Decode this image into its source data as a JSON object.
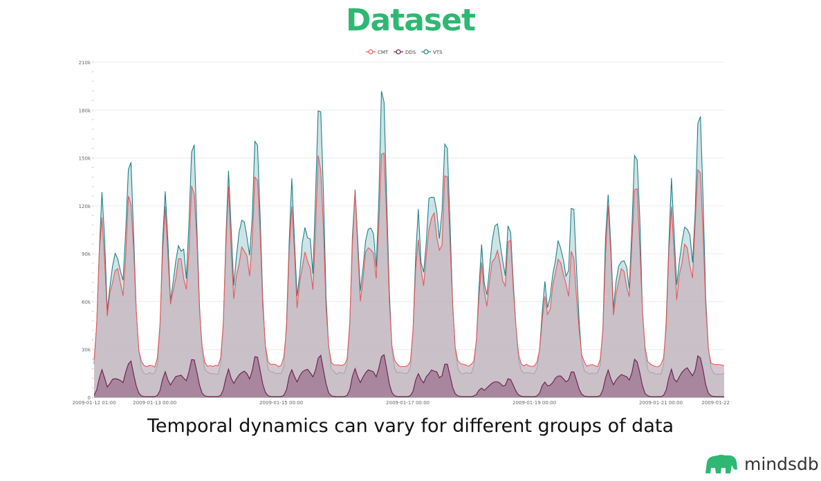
{
  "header": {
    "title": "Dataset"
  },
  "footer": {
    "caption": "Temporal dynamics can vary for different groups of data",
    "brand": "mindsdb"
  },
  "colors": {
    "title": "#2eb872",
    "CMT": "#e8575a",
    "DDS": "#6a1b4d",
    "VTS": "#1e8088",
    "brand": "#2eb872",
    "grid": "#ececec"
  },
  "chart_data": {
    "type": "area",
    "title": "",
    "xlabel": "",
    "ylabel": "",
    "ylim": [
      0,
      210000
    ],
    "yticks": [
      "0",
      "30k",
      "60k",
      "90k",
      "120k",
      "150k",
      "180k",
      "210k"
    ],
    "ytick_values": [
      0,
      30000,
      60000,
      90000,
      120000,
      150000,
      180000,
      210000
    ],
    "xlim": [
      "2009-01-12 01:00",
      "2009-01-22 00:00"
    ],
    "xticks": [
      "2009-01-12 01:00",
      "2009-01-13 00:00",
      "2009-01-15 00:00",
      "2009-01-17 00:00",
      "2009-01-19 00:00",
      "2009-01-21 00:00",
      "2009-01-22"
    ],
    "xtick_hours": [
      0,
      23,
      71,
      119,
      167,
      215,
      239
    ],
    "legend_position": "top-center",
    "grid": true,
    "series": [
      {
        "name": "CMT",
        "step_hours": 1,
        "day_peaks": [
          {
            "m": 118000,
            "a": 80000,
            "e": 130000
          },
          {
            "m": 120000,
            "a": 85000,
            "e": 135000
          },
          {
            "m": 128000,
            "a": 95000,
            "e": 146000
          },
          {
            "m": 120000,
            "a": 88000,
            "e": 153000
          },
          {
            "m": 126000,
            "a": 95000,
            "e": 159000
          },
          {
            "m": 104000,
            "a": 115000,
            "e": 142000
          },
          {
            "m": 84000,
            "a": 92000,
            "e": 99000
          },
          {
            "m": 62000,
            "a": 85000,
            "e": 91000
          },
          {
            "m": 116000,
            "a": 78000,
            "e": 133000
          },
          {
            "m": 122000,
            "a": 94000,
            "e": 152000
          }
        ],
        "night_min": 20000
      },
      {
        "name": "DDS",
        "step_hours": 1,
        "day_peaks": [
          {
            "m": 17000,
            "a": 12000,
            "e": 23000
          },
          {
            "m": 16000,
            "a": 14000,
            "e": 24000
          },
          {
            "m": 17000,
            "a": 16000,
            "e": 27000
          },
          {
            "m": 18000,
            "a": 18000,
            "e": 27000
          },
          {
            "m": 18000,
            "a": 17000,
            "e": 28000
          },
          {
            "m": 15000,
            "a": 17000,
            "e": 21000
          },
          {
            "m": 6000,
            "a": 10000,
            "e": 12000
          },
          {
            "m": 10000,
            "a": 13000,
            "e": 16000
          },
          {
            "m": 17000,
            "a": 14000,
            "e": 24000
          },
          {
            "m": 17000,
            "a": 18000,
            "e": 26000
          }
        ],
        "night_min": 500
      },
      {
        "name": "VTS",
        "step_hours": 1,
        "day_peaks": [
          {
            "m": 130000,
            "a": 90000,
            "e": 154000
          },
          {
            "m": 131000,
            "a": 97000,
            "e": 159000
          },
          {
            "m": 139000,
            "a": 110000,
            "e": 171000
          },
          {
            "m": 133000,
            "a": 104000,
            "e": 185000
          },
          {
            "m": 137000,
            "a": 110000,
            "e": 192000
          },
          {
            "m": 117000,
            "a": 133000,
            "e": 165000
          },
          {
            "m": 92000,
            "a": 106000,
            "e": 109000
          },
          {
            "m": 74000,
            "a": 98000,
            "e": 118000
          },
          {
            "m": 132000,
            "a": 90000,
            "e": 159000
          },
          {
            "m": 135000,
            "a": 110000,
            "e": 178000
          }
        ],
        "night_min": 15000
      }
    ]
  }
}
